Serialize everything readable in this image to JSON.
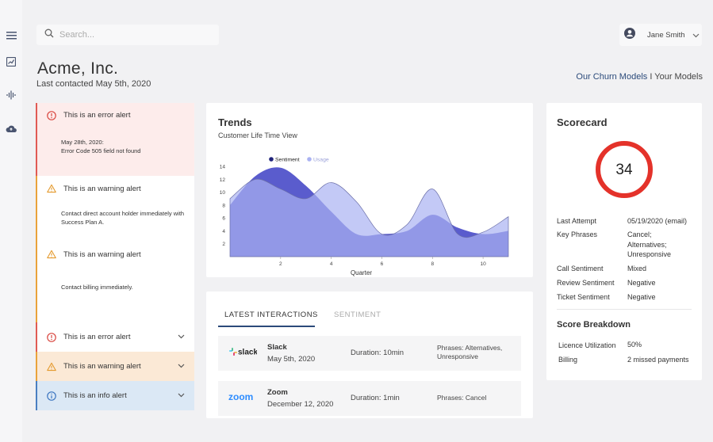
{
  "nav": {
    "icons": [
      "menu-icon",
      "chart-icon",
      "waveform-icon",
      "cloud-upload-icon"
    ]
  },
  "search": {
    "placeholder": "Search..."
  },
  "user": {
    "name": "Jane Smith"
  },
  "header": {
    "company": "Acme, Inc.",
    "last_contacted": "Last contacted May 5th, 2020",
    "churn_link": "Our Churn Models",
    "separator": " I ",
    "models_link": "Your Models"
  },
  "alerts": {
    "error_open": {
      "title": "This is an error alert",
      "body_line1": "May 28th, 2020:",
      "body_line2": "Error Code 505 field not found"
    },
    "warning_1": {
      "title": "This is an warning alert",
      "body": "Contact direct account holder immediately with Success Plan A."
    },
    "warning_2": {
      "title": "This is an warning alert",
      "body": "Contact billing immediately."
    },
    "collapsed": [
      {
        "kind": "error",
        "title": "This is an error alert"
      },
      {
        "kind": "warning",
        "title": "This is an warning alert"
      },
      {
        "kind": "info",
        "title": "This is an info alert"
      }
    ]
  },
  "trends": {
    "title": "Trends",
    "subtitle": "Customer Life Time View"
  },
  "chart_data": {
    "type": "area",
    "xlabel": "Quarter",
    "ylabel": "",
    "x_ticks": [
      2,
      4,
      6,
      8,
      10
    ],
    "y_ticks": [
      2,
      4,
      6,
      8,
      10,
      12,
      14
    ],
    "xlim": [
      0,
      11
    ],
    "ylim": [
      0,
      15
    ],
    "legend_position": "top",
    "series": [
      {
        "name": "Sentiment",
        "color": "#3d3fc4",
        "x": [
          0,
          1,
          2,
          3,
          4,
          5,
          6,
          7,
          8,
          9,
          10,
          11
        ],
        "values": [
          8,
          12.5,
          13.8,
          11,
          7,
          3.5,
          3.5,
          4,
          6.5,
          4.5,
          3.5,
          4
        ]
      },
      {
        "name": "Usage",
        "color": "#aab2f2",
        "x": [
          0,
          1,
          2,
          3,
          4,
          5,
          6,
          7,
          8,
          9,
          10,
          11
        ],
        "values": [
          9,
          12,
          10.5,
          9,
          11.5,
          8.5,
          3.5,
          5,
          10.5,
          3.5,
          3.8,
          6.2
        ]
      }
    ]
  },
  "interactions": {
    "tabs": [
      "LATEST INTERACTIONS",
      "SENTIMENT"
    ],
    "rows": [
      {
        "logo": "slack",
        "company": "Slack",
        "date": "May 5th, 2020",
        "duration": "Duration: 10min",
        "phrases": "Phrases: Alternatives, Unresponsive"
      },
      {
        "logo": "zoom",
        "company": "Zoom",
        "date": "December 12, 2020",
        "duration": "Duration: 1min",
        "phrases": "Phrases: Cancel"
      }
    ]
  },
  "scorecard": {
    "title": "Scorecard",
    "score": "34",
    "ring_color": "#e4322a",
    "fields": [
      {
        "label": "Last Attempt",
        "value": "05/19/2020 (email)"
      },
      {
        "label": "Key Phrases",
        "value": "Cancel;\nAlternatives;\nUnresponsive"
      },
      {
        "label": "Call Sentiment",
        "value": "Mixed"
      },
      {
        "label": "Review Sentiment",
        "value": "Negative"
      },
      {
        "label": "Ticket Sentiment",
        "value": "Negative"
      }
    ],
    "breakdown_title": "Score Breakdown",
    "breakdown": [
      {
        "label": "Licence Utilization",
        "value": "50%"
      },
      {
        "label": "Billing",
        "value": "2 missed payments"
      }
    ]
  }
}
